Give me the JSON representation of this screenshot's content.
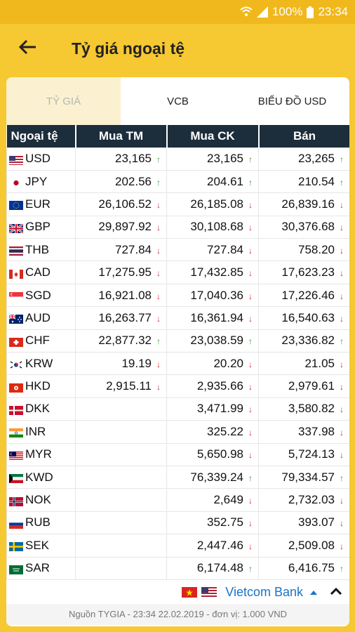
{
  "status": {
    "battery": "100%",
    "time": "23:34"
  },
  "header": {
    "title": "Tỷ giá ngoại tệ"
  },
  "tabs": [
    {
      "label": "TỶ GIÁ"
    },
    {
      "label": "VCB"
    },
    {
      "label": "BIỂU ĐỒ USD"
    }
  ],
  "table": {
    "columns": [
      "Ngoại tệ",
      "Mua TM",
      "Mua CK",
      "Bán"
    ],
    "rows": [
      {
        "code": "USD",
        "flag": "us-flag-icon",
        "mua_tm": "23,165",
        "mua_tm_dir": "up",
        "mua_ck": "23,165",
        "mua_ck_dir": "up",
        "ban": "23,265",
        "ban_dir": "up"
      },
      {
        "code": "JPY",
        "flag": "jp-flag-icon",
        "mua_tm": "202.56",
        "mua_tm_dir": "up",
        "mua_ck": "204.61",
        "mua_ck_dir": "up",
        "ban": "210.54",
        "ban_dir": "up"
      },
      {
        "code": "EUR",
        "flag": "eu-flag-icon",
        "mua_tm": "26,106.52",
        "mua_tm_dir": "down",
        "mua_ck": "26,185.08",
        "mua_ck_dir": "down",
        "ban": "26,839.16",
        "ban_dir": "down"
      },
      {
        "code": "GBP",
        "flag": "gb-flag-icon",
        "mua_tm": "29,897.92",
        "mua_tm_dir": "down",
        "mua_ck": "30,108.68",
        "mua_ck_dir": "down",
        "ban": "30,376.68",
        "ban_dir": "down"
      },
      {
        "code": "THB",
        "flag": "th-flag-icon",
        "mua_tm": "727.84",
        "mua_tm_dir": "down",
        "mua_ck": "727.84",
        "mua_ck_dir": "down",
        "ban": "758.20",
        "ban_dir": "down"
      },
      {
        "code": "CAD",
        "flag": "ca-flag-icon",
        "mua_tm": "17,275.95",
        "mua_tm_dir": "down",
        "mua_ck": "17,432.85",
        "mua_ck_dir": "down",
        "ban": "17,623.23",
        "ban_dir": "down"
      },
      {
        "code": "SGD",
        "flag": "sg-flag-icon",
        "mua_tm": "16,921.08",
        "mua_tm_dir": "down",
        "mua_ck": "17,040.36",
        "mua_ck_dir": "down",
        "ban": "17,226.46",
        "ban_dir": "down"
      },
      {
        "code": "AUD",
        "flag": "au-flag-icon",
        "mua_tm": "16,263.77",
        "mua_tm_dir": "down",
        "mua_ck": "16,361.94",
        "mua_ck_dir": "down",
        "ban": "16,540.63",
        "ban_dir": "down"
      },
      {
        "code": "CHF",
        "flag": "ch-flag-icon",
        "mua_tm": "22,877.32",
        "mua_tm_dir": "up",
        "mua_ck": "23,038.59",
        "mua_ck_dir": "up",
        "ban": "23,336.82",
        "ban_dir": "up"
      },
      {
        "code": "KRW",
        "flag": "kr-flag-icon",
        "mua_tm": "19.19",
        "mua_tm_dir": "down",
        "mua_ck": "20.20",
        "mua_ck_dir": "down",
        "ban": "21.05",
        "ban_dir": "down"
      },
      {
        "code": "HKD",
        "flag": "hk-flag-icon",
        "mua_tm": "2,915.11",
        "mua_tm_dir": "down",
        "mua_ck": "2,935.66",
        "mua_ck_dir": "down",
        "ban": "2,979.61",
        "ban_dir": "down"
      },
      {
        "code": "DKK",
        "flag": "dk-flag-icon",
        "mua_tm": "",
        "mua_tm_dir": "",
        "mua_ck": "3,471.99",
        "mua_ck_dir": "down",
        "ban": "3,580.82",
        "ban_dir": "down"
      },
      {
        "code": "INR",
        "flag": "in-flag-icon",
        "mua_tm": "",
        "mua_tm_dir": "",
        "mua_ck": "325.22",
        "mua_ck_dir": "down",
        "ban": "337.98",
        "ban_dir": "down"
      },
      {
        "code": "MYR",
        "flag": "my-flag-icon",
        "mua_tm": "",
        "mua_tm_dir": "",
        "mua_ck": "5,650.98",
        "mua_ck_dir": "down",
        "ban": "5,724.13",
        "ban_dir": "down"
      },
      {
        "code": "KWD",
        "flag": "kw-flag-icon",
        "mua_tm": "",
        "mua_tm_dir": "",
        "mua_ck": "76,339.24",
        "mua_ck_dir": "up",
        "ban": "79,334.57",
        "ban_dir": "up"
      },
      {
        "code": "NOK",
        "flag": "no-flag-icon",
        "mua_tm": "",
        "mua_tm_dir": "",
        "mua_ck": "2,649",
        "mua_ck_dir": "down",
        "ban": "2,732.03",
        "ban_dir": "down"
      },
      {
        "code": "RUB",
        "flag": "ru-flag-icon",
        "mua_tm": "",
        "mua_tm_dir": "",
        "mua_ck": "352.75",
        "mua_ck_dir": "down",
        "ban": "393.07",
        "ban_dir": "down"
      },
      {
        "code": "SEK",
        "flag": "se-flag-icon",
        "mua_tm": "",
        "mua_tm_dir": "",
        "mua_ck": "2,447.46",
        "mua_ck_dir": "down",
        "ban": "2,509.08",
        "ban_dir": "down"
      },
      {
        "code": "SAR",
        "flag": "sa-flag-icon",
        "mua_tm": "",
        "mua_tm_dir": "",
        "mua_ck": "6,174.48",
        "mua_ck_dir": "up",
        "ban": "6,416.75",
        "ban_dir": "up"
      }
    ]
  },
  "bank_selector": {
    "name": "Vietcom Bank"
  },
  "footer": {
    "text": "Nguồn TYGIA - 23:34 22.02.2019 - đơn vị: 1.000 VND"
  },
  "colors": {
    "accent": "#f6c832",
    "header_dark": "#1c2d3b",
    "up": "#2a9a2a",
    "down": "#d32727",
    "link": "#1a73c9"
  }
}
